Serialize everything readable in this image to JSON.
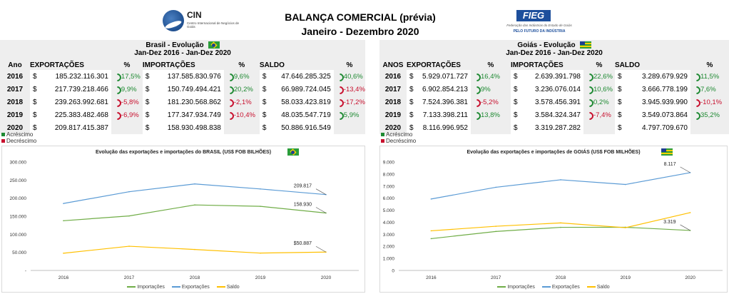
{
  "header": {
    "cin_name": "CIN",
    "cin_sub": "Centro Internacional de Negócios de Goiás",
    "title_line1": "BALANÇA COMERCIAL (prévia)",
    "title_line2": "Janeiro - Dezembro 2020",
    "fieg_name": "FIEG",
    "fieg_sub": "Federação das Indústrias do Estado de Goiás",
    "fieg_tag": "PELO FUTURO DA INDÚSTRIA"
  },
  "brasil": {
    "title": "Brasil - Evolução",
    "period": "Jan-Dez 2016 - Jan-Dez 2020",
    "flag_icon": "brazil-flag-icon",
    "columns": {
      "year": "Ano",
      "exp": "EXPORTAÇÕES",
      "imp": "IMPORTAÇÕES",
      "saldo": "SALDO",
      "pct": "%"
    },
    "rows": [
      {
        "year": "2016",
        "exp": "185.232.116.301",
        "exp_pct": "17,5%",
        "exp_dir": "pos",
        "imp": "137.585.830.976",
        "imp_pct": "9,6%",
        "imp_dir": "pos",
        "saldo": "47.646.285.325",
        "saldo_pct": "40,6%",
        "saldo_dir": "pos"
      },
      {
        "year": "2017",
        "exp": "217.739.218.466",
        "exp_pct": "9,9%",
        "exp_dir": "pos",
        "imp": "150.749.494.421",
        "imp_pct": "20,2%",
        "imp_dir": "pos",
        "saldo": "66.989.724.045",
        "saldo_pct": "-13,4%",
        "saldo_dir": "neg"
      },
      {
        "year": "2018",
        "exp": "239.263.992.681",
        "exp_pct": "-5,8%",
        "exp_dir": "neg",
        "imp": "181.230.568.862",
        "imp_pct": "-2,1%",
        "imp_dir": "neg",
        "saldo": "58.033.423.819",
        "saldo_pct": "-17,2%",
        "saldo_dir": "neg"
      },
      {
        "year": "2019",
        "exp": "225.383.482.468",
        "exp_pct": "-6,9%",
        "exp_dir": "neg",
        "imp": "177.347.934.749",
        "imp_pct": "-10,4%",
        "imp_dir": "neg",
        "saldo": "48.035.547.719",
        "saldo_pct": "5,9%",
        "saldo_dir": "pos"
      },
      {
        "year": "2020",
        "exp": "209.817.415.387",
        "exp_pct": "",
        "exp_dir": "",
        "imp": "158.930.498.838",
        "imp_pct": "",
        "imp_dir": "",
        "saldo": "50.886.916.549",
        "saldo_pct": "",
        "saldo_dir": ""
      }
    ],
    "legend_up": "Acréscimo",
    "legend_down": "Decréscimo"
  },
  "goias": {
    "title": "Goiás - Evolução",
    "period": "Jan-Dez 2016 - Jan-Dez 2020",
    "flag_icon": "goias-flag-icon",
    "columns": {
      "year": "ANOS",
      "exp": "EXPORTAÇÕES",
      "imp": "IMPORTAÇÕES",
      "saldo": "SALDO",
      "pct": "%"
    },
    "rows": [
      {
        "year": "2016",
        "exp": "5.929.071.727",
        "exp_pct": "16,4%",
        "exp_dir": "pos",
        "imp": "2.639.391.798",
        "imp_pct": "22,6%",
        "imp_dir": "pos",
        "saldo": "3.289.679.929",
        "saldo_pct": "11,5%",
        "saldo_dir": "pos"
      },
      {
        "year": "2017",
        "exp": "6.902.854.213",
        "exp_pct": "9%",
        "exp_dir": "pos",
        "imp": "3.236.076.014",
        "imp_pct": "10,6%",
        "imp_dir": "pos",
        "saldo": "3.666.778.199",
        "saldo_pct": "7,6%",
        "saldo_dir": "pos"
      },
      {
        "year": "2018",
        "exp": "7.524.396.381",
        "exp_pct": "-5,2%",
        "exp_dir": "neg",
        "imp": "3.578.456.391",
        "imp_pct": "0,2%",
        "imp_dir": "pos",
        "saldo": "3.945.939.990",
        "saldo_pct": "-10,1%",
        "saldo_dir": "neg"
      },
      {
        "year": "2019",
        "exp": "7.133.398.211",
        "exp_pct": "13,8%",
        "exp_dir": "pos",
        "imp": "3.584.324.347",
        "imp_pct": "-7,4%",
        "imp_dir": "neg",
        "saldo": "3.549.073.864",
        "saldo_pct": "35,2%",
        "saldo_dir": "pos"
      },
      {
        "year": "2020",
        "exp": "8.116.996.952",
        "exp_pct": "",
        "exp_dir": "",
        "imp": "3.319.287.282",
        "imp_pct": "",
        "imp_dir": "",
        "saldo": "4.797.709.670",
        "saldo_pct": "",
        "saldo_dir": ""
      }
    ],
    "legend_up": "Acréscimo",
    "legend_down": "Decréscimo"
  },
  "colors": {
    "import": "#70ad47",
    "export": "#5b9bd5",
    "saldo": "#ffc000",
    "pos": "#1f8a33",
    "neg": "#c8102e"
  },
  "chart_data": [
    {
      "type": "line",
      "title": "Evolução das exportações e importações do BRASIL (US$ FOB BILHÕES)",
      "x": [
        "2016",
        "2017",
        "2018",
        "2019",
        "2020"
      ],
      "ylim": [
        0,
        300000
      ],
      "yticks": [
        0,
        50000,
        100000,
        150000,
        200000,
        250000,
        300000
      ],
      "ytick_labels": [
        "-",
        "50.000",
        "100.000",
        "150.000",
        "200.000",
        "250.000",
        "300.000"
      ],
      "series": [
        {
          "name": "Importações",
          "values": [
            137586,
            150749,
            181231,
            177348,
            158930
          ]
        },
        {
          "name": "Exportações",
          "values": [
            185232,
            217739,
            239264,
            225383,
            209817
          ]
        },
        {
          "name": "Saldo",
          "values": [
            47646,
            66990,
            58033,
            48036,
            50887
          ]
        }
      ],
      "annotations": [
        {
          "series": "Exportações",
          "index": 4,
          "text": "209.817"
        },
        {
          "series": "Importações",
          "index": 4,
          "text": "158.930"
        },
        {
          "series": "Saldo",
          "index": 4,
          "text": "$50.887"
        }
      ],
      "grid": false,
      "legend": "bottom"
    },
    {
      "type": "line",
      "title": "Evolução das exportações e importações de GOIÁS (US$ FOB MILHÕES)",
      "x": [
        "2016",
        "2017",
        "2018",
        "2019",
        "2020"
      ],
      "ylim": [
        0,
        9000
      ],
      "yticks": [
        0,
        1000,
        2000,
        3000,
        4000,
        5000,
        6000,
        7000,
        8000,
        9000
      ],
      "ytick_labels": [
        "0",
        "1.000",
        "2.000",
        "3.000",
        "4.000",
        "5.000",
        "6.000",
        "7.000",
        "8.000",
        "9.000"
      ],
      "series": [
        {
          "name": "Importações",
          "values": [
            2639,
            3236,
            3578,
            3584,
            3319
          ]
        },
        {
          "name": "Exportações",
          "values": [
            5929,
            6903,
            7524,
            7133,
            8117
          ]
        },
        {
          "name": "Saldo",
          "values": [
            3290,
            3667,
            3946,
            3549,
            4798
          ]
        }
      ],
      "annotations": [
        {
          "series": "Exportações",
          "index": 4,
          "text": "8.117"
        },
        {
          "series": "Importações",
          "index": 4,
          "text": "3.319"
        }
      ],
      "grid": false,
      "legend": "bottom"
    }
  ]
}
